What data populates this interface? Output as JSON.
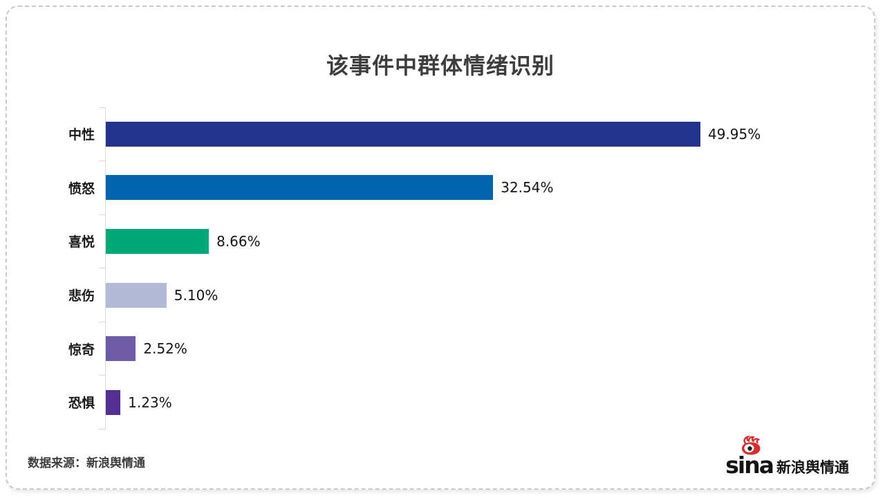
{
  "title": "该事件中群体情绪识别",
  "chart_data": {
    "type": "bar",
    "orientation": "horizontal",
    "title": "该事件中群体情绪识别",
    "categories": [
      "中性",
      "愤怒",
      "喜悦",
      "悲伤",
      "惊奇",
      "恐惧"
    ],
    "values": [
      49.95,
      32.54,
      8.66,
      5.1,
      2.52,
      1.23
    ],
    "value_labels": [
      "49.95%",
      "32.54%",
      "8.66%",
      "5.10%",
      "2.52%",
      "1.23%"
    ],
    "bar_colors": [
      "#23338b",
      "#0064ae",
      "#00a878",
      "#b2bad6",
      "#6d5ba6",
      "#532f93"
    ],
    "xlabel": "",
    "ylabel": "",
    "xlim": [
      0,
      60
    ],
    "grid": false,
    "legend": false,
    "axis_color": "#dcdcdc"
  },
  "footer": {
    "source_label": "数据来源：新浪舆情通",
    "logo_sina": "sina",
    "logo_brand": "新浪舆情通"
  }
}
